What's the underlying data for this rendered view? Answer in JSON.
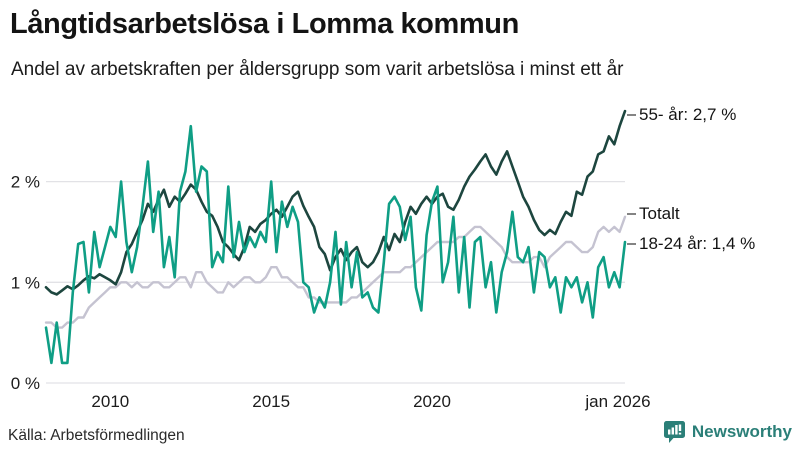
{
  "title": "Långtidsarbetslösa i Lomma kommun",
  "subtitle": "Andel av arbetskraften per åldersgrupp som varit arbetslösa i minst ett år",
  "source": "Källa: Arbetsförmedlingen",
  "branding": {
    "name": "Newsworthy",
    "icon": "newsworthy-pin-barchart-icon",
    "color": "#2b7f78"
  },
  "colors": {
    "background": "#ffffff",
    "gridline": "#e2e2e6",
    "axis_text": "#1c1c1c",
    "label_tick": "#333333"
  },
  "chart_data": {
    "type": "line",
    "title": "Långtidsarbetslösa i Lomma kommun",
    "subtitle": "Andel av arbetskraften per åldersgrupp som varit arbetslösa i minst ett år",
    "unit": "% av arbetskraften",
    "grid": "horizontal-only",
    "legend_position": "end-of-line-labels-right",
    "x_axis": {
      "start_year": 2008.0,
      "end_year": 2026.0,
      "step_months": 2,
      "tick_labels": [
        "2010",
        "2015",
        "2020",
        "jan 2026"
      ],
      "tick_years": [
        2010,
        2015,
        2020,
        2026
      ]
    },
    "y_axis": {
      "tick_labels": [
        "0 %",
        "1 %",
        "2 %"
      ],
      "tick_values": [
        0,
        1,
        2
      ],
      "range": [
        0,
        2.85
      ]
    },
    "series": [
      {
        "name": "Totalt",
        "end_label": "Totalt",
        "end_value": 1.65,
        "color": "#c5c3d1",
        "stroke_width": 2.4,
        "values": [
          0.6,
          0.6,
          0.55,
          0.55,
          0.6,
          0.6,
          0.65,
          0.65,
          0.75,
          0.8,
          0.85,
          0.9,
          0.95,
          0.95,
          1.0,
          1.0,
          0.95,
          1.0,
          0.95,
          0.95,
          1.0,
          1.0,
          0.95,
          0.95,
          1.0,
          1.05,
          1.05,
          0.95,
          1.1,
          1.1,
          1.0,
          0.95,
          0.9,
          0.9,
          1.0,
          0.95,
          1.0,
          1.05,
          1.05,
          1.0,
          1.0,
          1.05,
          1.15,
          1.15,
          1.05,
          1.05,
          1.0,
          0.95,
          0.95,
          0.85,
          0.85,
          0.8,
          0.8,
          0.8,
          0.8,
          0.8,
          0.8,
          0.85,
          0.85,
          0.9,
          0.95,
          1.0,
          1.05,
          1.1,
          1.1,
          1.1,
          1.1,
          1.15,
          1.15,
          1.2,
          1.25,
          1.3,
          1.35,
          1.4,
          1.4,
          1.4,
          1.4,
          1.45,
          1.45,
          1.5,
          1.55,
          1.55,
          1.5,
          1.45,
          1.4,
          1.35,
          1.25,
          1.2,
          1.2,
          1.2,
          1.2,
          1.25,
          1.25,
          1.15,
          1.25,
          1.3,
          1.35,
          1.4,
          1.4,
          1.35,
          1.3,
          1.3,
          1.35,
          1.5,
          1.55,
          1.5,
          1.55,
          1.5,
          1.65
        ]
      },
      {
        "name": "55- år",
        "end_label": "55- år: 2,7 %",
        "end_value": 2.7,
        "color": "#1d463f",
        "stroke_width": 2.6,
        "values": [
          0.95,
          0.9,
          0.88,
          0.92,
          0.96,
          0.93,
          0.97,
          1.02,
          1.06,
          1.04,
          1.08,
          1.05,
          1.02,
          0.98,
          1.1,
          1.3,
          1.38,
          1.5,
          1.62,
          1.78,
          1.7,
          1.82,
          1.92,
          1.75,
          1.85,
          1.8,
          1.88,
          1.97,
          1.92,
          1.8,
          1.7,
          1.66,
          1.55,
          1.4,
          1.35,
          1.28,
          1.22,
          1.35,
          1.55,
          1.5,
          1.58,
          1.62,
          1.68,
          1.72,
          1.65,
          1.75,
          1.85,
          1.9,
          1.76,
          1.65,
          1.55,
          1.35,
          1.28,
          1.12,
          1.25,
          1.33,
          1.22,
          1.3,
          1.35,
          1.2,
          1.15,
          1.2,
          1.3,
          1.45,
          1.32,
          1.48,
          1.4,
          1.6,
          1.75,
          1.68,
          1.78,
          1.85,
          1.78,
          1.85,
          1.88,
          1.75,
          1.72,
          1.82,
          1.95,
          2.05,
          2.12,
          2.2,
          2.27,
          2.15,
          2.07,
          2.2,
          2.3,
          2.15,
          2.0,
          1.85,
          1.75,
          1.62,
          1.52,
          1.47,
          1.52,
          1.48,
          1.6,
          1.7,
          1.66,
          1.9,
          1.87,
          2.05,
          2.1,
          2.27,
          2.3,
          2.45,
          2.37,
          2.55,
          2.7
        ]
      },
      {
        "name": "18-24 år",
        "end_label": "18-24 år: 1,4 %",
        "end_value": 1.4,
        "color": "#0f9e85",
        "stroke_width": 2.6,
        "values": [
          0.55,
          0.2,
          0.6,
          0.2,
          0.2,
          0.9,
          1.38,
          1.4,
          0.9,
          1.5,
          1.15,
          1.35,
          1.55,
          1.45,
          2.0,
          1.4,
          1.1,
          1.35,
          1.75,
          2.2,
          1.5,
          1.9,
          1.15,
          1.45,
          1.05,
          1.9,
          2.1,
          2.55,
          1.9,
          2.15,
          2.1,
          1.15,
          1.3,
          1.2,
          1.95,
          1.25,
          1.6,
          1.3,
          1.45,
          1.35,
          1.5,
          1.4,
          2.0,
          1.3,
          1.8,
          1.55,
          1.75,
          1.6,
          1.0,
          0.95,
          0.7,
          0.85,
          0.75,
          1.0,
          1.5,
          0.78,
          1.4,
          0.95,
          1.3,
          0.85,
          0.9,
          0.75,
          0.7,
          1.2,
          1.78,
          1.85,
          1.75,
          1.42,
          1.65,
          0.95,
          0.72,
          1.47,
          1.8,
          1.95,
          1.0,
          1.2,
          1.65,
          0.9,
          1.45,
          0.75,
          1.4,
          1.45,
          0.95,
          1.2,
          0.7,
          1.1,
          1.3,
          1.7,
          1.25,
          1.2,
          1.35,
          0.9,
          1.3,
          1.25,
          0.95,
          1.05,
          0.7,
          1.05,
          0.95,
          1.05,
          0.8,
          1.0,
          0.65,
          1.15,
          1.25,
          0.95,
          1.1,
          0.95,
          1.4
        ]
      }
    ]
  }
}
